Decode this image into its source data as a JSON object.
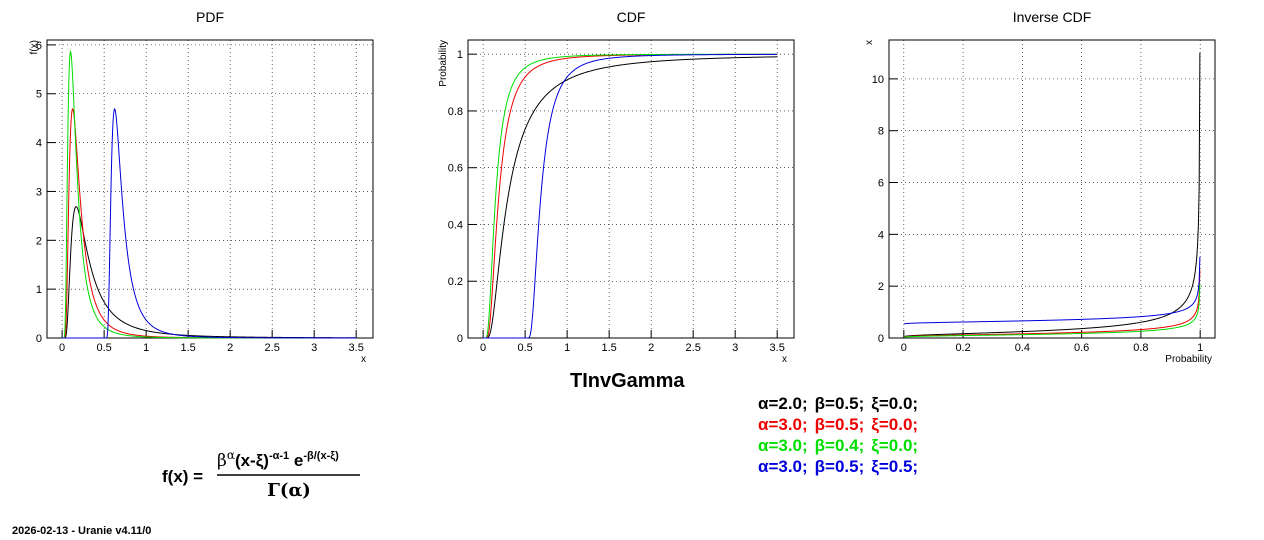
{
  "footer": "2026-02-13 - Uranie v4.11/0",
  "main_title": "TInvGamma",
  "colors": {
    "black": "#000000",
    "red": "#ee0000",
    "green": "#00dd00",
    "blue": "#0000dd"
  },
  "legend": [
    {
      "alpha": "α=2.0;",
      "beta": "β=0.5;",
      "xi": "ξ=0.0;",
      "color": "#000000"
    },
    {
      "alpha": "α=3.0;",
      "beta": "β=0.5;",
      "xi": "ξ=0.0;",
      "color": "#ee0000"
    },
    {
      "alpha": "α=3.0;",
      "beta": "β=0.4;",
      "xi": "ξ=0.0;",
      "color": "#00dd00"
    },
    {
      "alpha": "α=3.0;",
      "beta": "β=0.5;",
      "xi": "ξ=0.5;",
      "color": "#0000dd"
    }
  ],
  "formula": {
    "lhs": "f(x) =",
    "num_beta": "β",
    "num_alpha_sup": "α",
    "num_mid": "(x-ξ)",
    "num_exp": "-α-1",
    "num_e": " e",
    "num_e_sup": "-β/(x-ξ)",
    "denominator": "Γ(α)"
  },
  "chart_data": [
    {
      "type": "line",
      "title": "PDF",
      "xlabel": "x",
      "ylabel": "f(x)",
      "xlim": [
        -0.18,
        3.7
      ],
      "ylim": [
        0,
        6.1
      ],
      "xticks": [
        "0",
        "0.5",
        "1",
        "1.5",
        "2",
        "2.5",
        "3",
        "3.5"
      ],
      "xtick_values": [
        0,
        0.5,
        1,
        1.5,
        2,
        2.5,
        3,
        3.5
      ],
      "yticks": [
        "0",
        "1",
        "2",
        "3",
        "4",
        "5",
        "6"
      ],
      "ytick_values": [
        0,
        1,
        2,
        3,
        4,
        5,
        6
      ],
      "grid": true,
      "series": [
        {
          "color": "#000000",
          "params": {
            "alpha": 2.0,
            "beta": 0.5,
            "xi": 0.0
          }
        },
        {
          "color": "#ee0000",
          "params": {
            "alpha": 3.0,
            "beta": 0.5,
            "xi": 0.0
          }
        },
        {
          "color": "#00dd00",
          "params": {
            "alpha": 3.0,
            "beta": 0.4,
            "xi": 0.0
          }
        },
        {
          "color": "#0000dd",
          "params": {
            "alpha": 3.0,
            "beta": 0.5,
            "xi": 0.5
          }
        }
      ]
    },
    {
      "type": "line",
      "title": "CDF",
      "xlabel": "x",
      "ylabel": "Probability",
      "xlim": [
        -0.18,
        3.7
      ],
      "ylim": [
        0,
        1.05
      ],
      "xticks": [
        "0",
        "0.5",
        "1",
        "1.5",
        "2",
        "2.5",
        "3",
        "3.5"
      ],
      "xtick_values": [
        0,
        0.5,
        1,
        1.5,
        2,
        2.5,
        3,
        3.5
      ],
      "yticks": [
        "0",
        "0.2",
        "0.4",
        "0.6",
        "0.8",
        "1"
      ],
      "ytick_values": [
        0,
        0.2,
        0.4,
        0.6,
        0.8,
        1
      ],
      "grid": true,
      "series": [
        {
          "color": "#000000",
          "params": {
            "alpha": 2.0,
            "beta": 0.5,
            "xi": 0.0
          }
        },
        {
          "color": "#ee0000",
          "params": {
            "alpha": 3.0,
            "beta": 0.5,
            "xi": 0.0
          }
        },
        {
          "color": "#00dd00",
          "params": {
            "alpha": 3.0,
            "beta": 0.4,
            "xi": 0.0
          }
        },
        {
          "color": "#0000dd",
          "params": {
            "alpha": 3.0,
            "beta": 0.5,
            "xi": 0.5
          }
        }
      ]
    },
    {
      "type": "line",
      "title": "Inverse CDF",
      "xlabel": "Probability",
      "ylabel": "x",
      "xlim": [
        -0.05,
        1.05
      ],
      "ylim": [
        0,
        11.5
      ],
      "xticks": [
        "0",
        "0.2",
        "0.4",
        "0.6",
        "0.8",
        "1"
      ],
      "xtick_values": [
        0,
        0.2,
        0.4,
        0.6,
        0.8,
        1
      ],
      "yticks": [
        "0",
        "2",
        "4",
        "6",
        "8",
        "10"
      ],
      "ytick_values": [
        0,
        2,
        4,
        6,
        8,
        10
      ],
      "grid": true,
      "series": [
        {
          "color": "#000000",
          "params": {
            "alpha": 2.0,
            "beta": 0.5,
            "xi": 0.0
          }
        },
        {
          "color": "#ee0000",
          "params": {
            "alpha": 3.0,
            "beta": 0.5,
            "xi": 0.0
          }
        },
        {
          "color": "#00dd00",
          "params": {
            "alpha": 3.0,
            "beta": 0.4,
            "xi": 0.0
          }
        },
        {
          "color": "#0000dd",
          "params": {
            "alpha": 3.0,
            "beta": 0.5,
            "xi": 0.5
          }
        }
      ]
    }
  ]
}
